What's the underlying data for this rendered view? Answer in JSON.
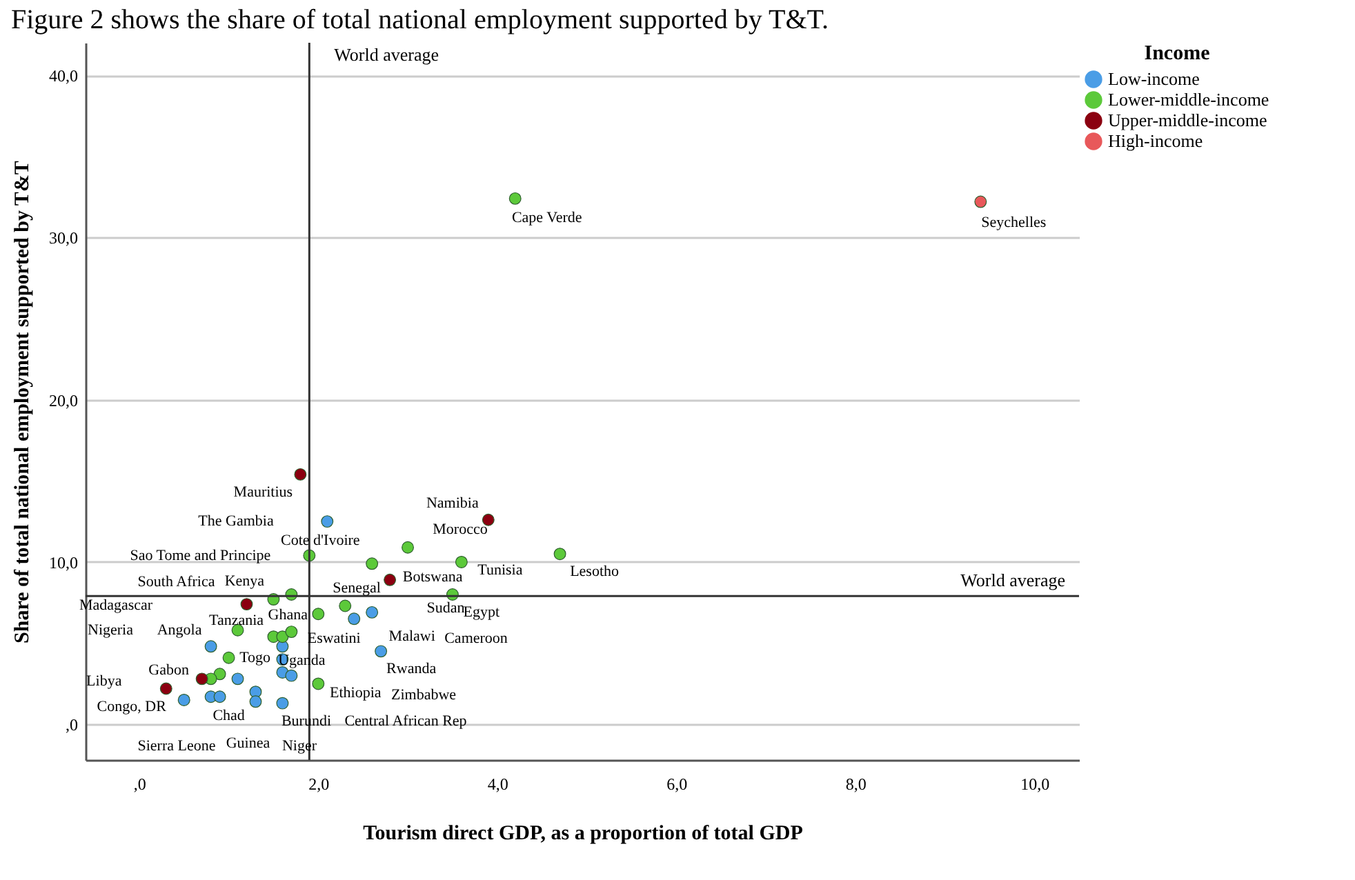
{
  "chart_data": {
    "type": "scatter",
    "title": "Figure 2 shows the share of total national employment supported by T&T.",
    "xlabel": "Tourism direct GDP, as a proportion of total GDP",
    "ylabel": "Share of total national employment supported by T&T",
    "legend_title": "Income",
    "legend": "top right",
    "grid": "y",
    "marker": "circle",
    "xlim": [
      -0.6,
      10.5
    ],
    "ylim": [
      -2.2,
      42
    ],
    "xticks": [
      {
        "value": 0,
        "label": ",0"
      },
      {
        "value": 2,
        "label": "2,0"
      },
      {
        "value": 4,
        "label": "4,0"
      },
      {
        "value": 6,
        "label": "6,0"
      },
      {
        "value": 8,
        "label": "8,0"
      },
      {
        "value": 10,
        "label": "10,0"
      }
    ],
    "yticks": [
      {
        "value": 0,
        "label": ",0"
      },
      {
        "value": 10,
        "label": "10,0"
      },
      {
        "value": 20,
        "label": "20,0"
      },
      {
        "value": 30,
        "label": "30,0"
      },
      {
        "value": 40,
        "label": "40,0"
      }
    ],
    "series": [
      {
        "name": "Low-income",
        "color": "#4a9de6",
        "x": [
          2.1,
          2.4,
          2.6,
          0.8,
          1.6,
          2.7,
          1.6,
          1.1,
          1.6,
          1.7,
          0.5,
          0.8,
          0.9,
          1.3,
          1.3,
          1.6
        ],
        "values": [
          12.5,
          6.5,
          6.9,
          4.8,
          4.8,
          4.5,
          4.0,
          2.8,
          3.2,
          3.0,
          1.5,
          1.7,
          1.7,
          2.0,
          1.4,
          1.3
        ]
      },
      {
        "name": "Lower-middle-income",
        "color": "#5cc93a",
        "x": [
          4.2,
          4.7,
          3.0,
          1.9,
          2.6,
          3.6,
          3.5,
          1.7,
          1.5,
          2.0,
          2.3,
          1.1,
          1.5,
          1.6,
          1.7,
          1.0,
          0.9,
          0.8,
          2.0
        ],
        "values": [
          32.4,
          10.5,
          10.9,
          10.4,
          9.9,
          10.0,
          8.0,
          8.0,
          7.7,
          6.8,
          7.3,
          5.8,
          5.4,
          5.4,
          5.7,
          4.1,
          3.1,
          2.8,
          2.5
        ]
      },
      {
        "name": "Upper-middle-income",
        "color": "#8b0010",
        "x": [
          1.8,
          3.9,
          2.8,
          1.2,
          0.7,
          0.3
        ],
        "values": [
          15.4,
          12.6,
          8.9,
          7.4,
          2.8,
          2.2
        ]
      },
      {
        "name": "High-income",
        "color": "#e8585a",
        "x": [
          9.4
        ],
        "values": [
          32.2
        ]
      }
    ],
    "ref_lines": [
      {
        "axis": "x",
        "value": 1.9,
        "label": "World average",
        "color": "#333333"
      },
      {
        "axis": "y",
        "value": 7.9,
        "label": "World average",
        "color": "#333333"
      }
    ],
    "annotations": [
      {
        "text": "Cape Verde",
        "x": 4.2,
        "y": 32.4
      },
      {
        "text": "Seychelles",
        "x": 9.4,
        "y": 32.2
      },
      {
        "text": "Mauritius",
        "x": 1.8,
        "y": 15.4
      },
      "The Gambia",
      {
        "text": "Namibia",
        "x": 3.9,
        "y": 12.6
      },
      {
        "text": "Morocco",
        "x": 3.0,
        "y": 10.9
      },
      {
        "text": "Cote d'Ivoire",
        "x": 1.9,
        "y": 10.4
      },
      {
        "text": "Sao Tome and Principe",
        "x": 1.7,
        "y": 8.0
      },
      {
        "text": "Tunisia",
        "x": 3.6,
        "y": 10.0
      },
      {
        "text": "Lesotho",
        "x": 4.7,
        "y": 10.5
      },
      {
        "text": "Botswana",
        "x": 2.8,
        "y": 8.9
      },
      {
        "text": "South Africa",
        "x": 1.2,
        "y": 7.4
      },
      {
        "text": "Kenya",
        "x": 1.5,
        "y": 7.7
      },
      {
        "text": "Senegal",
        "x": 2.6,
        "y": 9.9
      },
      "Madagascar",
      "Sudan",
      {
        "text": "Egypt",
        "x": 3.5,
        "y": 8.0
      },
      {
        "text": "Tanzania",
        "x": 1.1,
        "y": 5.8
      },
      {
        "text": "Ghana",
        "x": 2.0,
        "y": 6.8
      },
      "Nigeria",
      "Angola",
      {
        "text": "Eswatini",
        "x": 2.3,
        "y": 7.3
      },
      {
        "text": "Malawi",
        "x": 2.4,
        "y": 6.5
      },
      "Cameroon",
      {
        "text": "Togo",
        "x": 1.0,
        "y": 4.1
      },
      {
        "text": "Uganda",
        "x": 1.6,
        "y": 4.0
      },
      {
        "text": "Rwanda",
        "x": 2.7,
        "y": 4.5
      },
      {
        "text": "Gabon",
        "x": 0.7,
        "y": 2.8
      },
      {
        "text": "Libya",
        "x": 0.3,
        "y": 2.2
      },
      {
        "text": "Ethiopia",
        "x": 2.0,
        "y": 2.5
      },
      "Zimbabwe",
      {
        "text": "Congo, DR",
        "x": 0.5,
        "y": 1.5
      },
      {
        "text": "Chad",
        "x": 0.8,
        "y": 1.7
      },
      "Burundi",
      "Central African Rep",
      "Sierra Leone",
      {
        "text": "Guinea",
        "x": 1.6,
        "y": 1.3
      },
      "Niger"
    ]
  }
}
